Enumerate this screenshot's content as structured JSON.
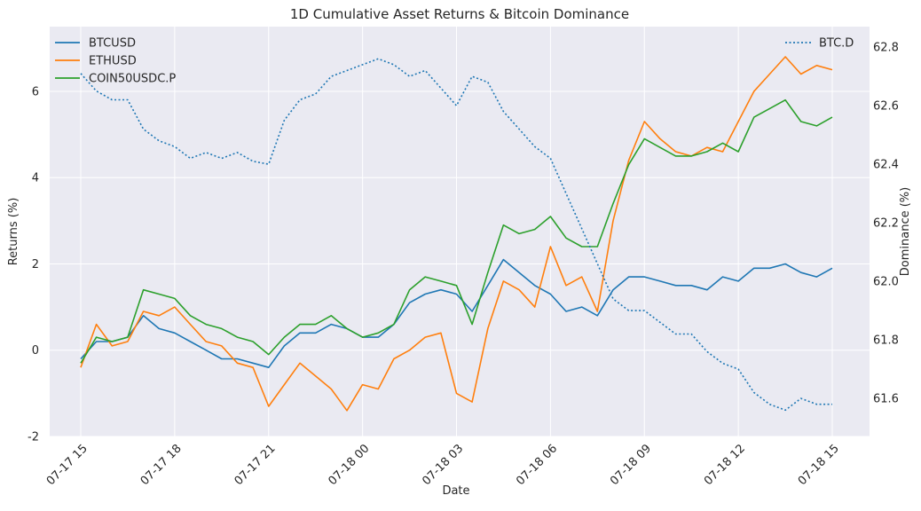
{
  "chart_data": {
    "type": "line",
    "title": "1D Cumulative Asset Returns & Bitcoin Dominance",
    "xlabel": "Date",
    "ylabel": "Returns (%)",
    "ylabel_right": "Dominance (%)",
    "grid": true,
    "x_range": [
      "07-17 15:00",
      "07-18 15:00"
    ],
    "ylim": [
      -2.0,
      7.5
    ],
    "ylim_right": [
      61.47,
      62.87
    ],
    "x_ticks": [
      "07-17 15",
      "07-17 18",
      "07-17 21",
      "07-18 00",
      "07-18 03",
      "07-18 06",
      "07-18 09",
      "07-18 12",
      "07-18 15"
    ],
    "y_ticks": [
      "-2",
      "0",
      "2",
      "4",
      "6"
    ],
    "y_ticks_right": [
      "61.6",
      "61.8",
      "62.0",
      "62.2",
      "62.4",
      "62.6",
      "62.8"
    ],
    "legend_left_position": "upper-left",
    "legend_right_position": "upper-right",
    "time_of_day_hours": [
      15,
      15.5,
      16,
      16.5,
      17,
      17.5,
      18,
      18.5,
      19,
      19.5,
      20,
      20.5,
      21,
      21.5,
      22,
      22.5,
      23,
      23.5,
      24,
      24.5,
      25,
      25.5,
      26,
      26.5,
      27,
      27.5,
      28,
      28.5,
      29,
      29.5,
      30,
      30.5,
      31,
      31.5,
      32,
      32.5,
      33,
      33.5,
      34,
      34.5,
      35,
      35.5,
      36,
      36.5,
      37,
      37.5,
      38,
      38.5,
      39
    ],
    "series": [
      {
        "name": "BTCUSD",
        "axis": "left",
        "color": "#1f77b4",
        "style": "solid",
        "values": [
          -0.2,
          0.2,
          0.2,
          0.3,
          0.8,
          0.5,
          0.4,
          0.2,
          0.0,
          -0.2,
          -0.2,
          -0.3,
          -0.4,
          0.1,
          0.4,
          0.4,
          0.6,
          0.5,
          0.3,
          0.3,
          0.6,
          1.1,
          1.3,
          1.4,
          1.3,
          0.9,
          1.5,
          2.1,
          1.8,
          1.5,
          1.3,
          0.9,
          1.0,
          0.8,
          1.4,
          1.7,
          1.7,
          1.6,
          1.5,
          1.5,
          1.4,
          1.7,
          1.6,
          1.9,
          1.9,
          2.0,
          1.8,
          1.7,
          1.9
        ]
      },
      {
        "name": "ETHUSD",
        "axis": "left",
        "color": "#ff7f0e",
        "style": "solid",
        "values": [
          -0.4,
          0.6,
          0.1,
          0.2,
          0.9,
          0.8,
          1.0,
          0.6,
          0.2,
          0.1,
          -0.3,
          -0.4,
          -1.3,
          -0.8,
          -0.3,
          -0.6,
          -0.9,
          -1.4,
          -0.8,
          -0.9,
          -0.2,
          0.0,
          0.3,
          0.4,
          -1.0,
          -1.2,
          0.5,
          1.6,
          1.4,
          1.0,
          2.4,
          1.5,
          1.7,
          0.9,
          3.0,
          4.4,
          5.3,
          4.9,
          4.6,
          4.5,
          4.7,
          4.6,
          5.3,
          6.0,
          6.4,
          6.8,
          6.4,
          6.6,
          6.5
        ]
      },
      {
        "name": "COIN50USDC.P",
        "axis": "left",
        "color": "#2ca02c",
        "style": "solid",
        "values": [
          -0.3,
          0.3,
          0.2,
          0.3,
          1.4,
          1.3,
          1.2,
          0.8,
          0.6,
          0.5,
          0.3,
          0.2,
          -0.1,
          0.3,
          0.6,
          0.6,
          0.8,
          0.5,
          0.3,
          0.4,
          0.6,
          1.4,
          1.7,
          1.6,
          1.5,
          0.6,
          1.8,
          2.9,
          2.7,
          2.8,
          3.1,
          2.6,
          2.4,
          2.4,
          3.4,
          4.3,
          4.9,
          4.7,
          4.5,
          4.5,
          4.6,
          4.8,
          4.6,
          5.4,
          5.6,
          5.8,
          5.3,
          5.2,
          5.4
        ]
      },
      {
        "name": "BTC.D",
        "axis": "right",
        "color": "#1f77b4",
        "style": "dotted",
        "values": [
          62.71,
          62.65,
          62.62,
          62.62,
          62.52,
          62.48,
          62.46,
          62.42,
          62.44,
          62.42,
          62.44,
          62.41,
          62.4,
          62.55,
          62.62,
          62.64,
          62.7,
          62.72,
          62.74,
          62.76,
          62.74,
          62.7,
          62.72,
          62.66,
          62.6,
          62.7,
          62.68,
          62.58,
          62.52,
          62.46,
          62.42,
          62.3,
          62.18,
          62.06,
          61.94,
          61.9,
          61.9,
          61.86,
          61.82,
          61.82,
          61.76,
          61.72,
          61.7,
          61.62,
          61.58,
          61.56,
          61.6,
          61.58,
          61.58
        ]
      }
    ]
  }
}
